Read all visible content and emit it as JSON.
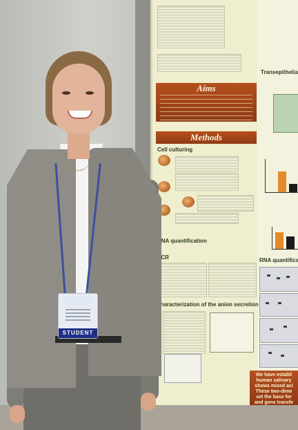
{
  "poster": {
    "aims_title": "Aims",
    "methods_title": "Methods",
    "cell_culturing_title": "Cell culturing",
    "rna_quantification_title": "RNA quantification",
    "pcr_title": "PCR",
    "characterization_title": "characterization of the anion secretion",
    "transepithelial_title": "Transepithelial",
    "rna_quantification_right_title": "RNA quantificatio",
    "conclusion_text": "We have establi\nhuman salivary\nshows mixed aci\nThese two-dime\nset the base for\nand gene transfe"
  },
  "badge": {
    "label": "STUDENT"
  },
  "colors": {
    "poster_bg": "#efeecf",
    "banner": "#a8471a",
    "badge_strip": "#1f2f86",
    "jacket": "#8f8d86"
  }
}
